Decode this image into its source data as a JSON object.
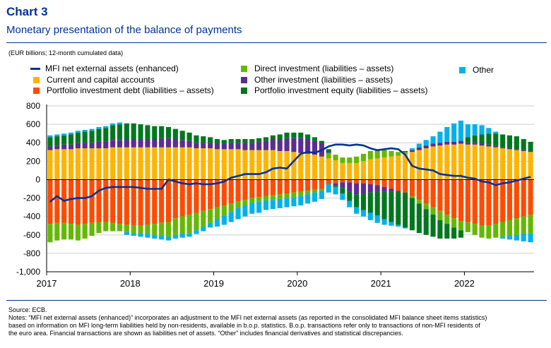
{
  "header": {
    "title": "Chart 3",
    "subtitle": "Monetary presentation of the balance of payments",
    "unit": "(EUR billions; 12-month cumulated data)"
  },
  "legend": {
    "mfi": "MFI net external assets (enhanced)",
    "ca": "Current and capital accounts",
    "pid": "Portfolio investment debt (liabilities – assets)",
    "di": "Direct investment (liabilities – assets)",
    "oi": "Other investment (liabilities – assets)",
    "pie": "Portfolio investment equity (liabilities – assets)",
    "other": "Other"
  },
  "footer": {
    "source": "Source: ECB.",
    "notes": [
      "Notes: “MFI net external assets (enhanced)” incorporates an adjustment to the MFI net external assets (as reported in the consolidated MFI balance sheet items statistics)",
      "based on information on MFI long-term liabilities held by non-residents, available in b.o.p. statistics. B.o.p. transactions refer only to transactions of non-MFI residents of",
      "the euro area. Financial transactions are shown as liabilities net of assets. “Other” includes financial derivatives and statistical discrepancies."
    ]
  },
  "chart_data": {
    "type": "bar",
    "stacked": true,
    "ylim": [
      -1000,
      800
    ],
    "yticks": [
      "800",
      "600",
      "400",
      "200",
      "0",
      "-200",
      "-400",
      "-600",
      "-800",
      "-1,000"
    ],
    "ytick_values": [
      800,
      600,
      400,
      200,
      0,
      -200,
      -400,
      -600,
      -800,
      -1000
    ],
    "xticks": [
      "2017",
      "2018",
      "2019",
      "2020",
      "2021",
      "2022"
    ],
    "grid": true,
    "legend_position": "top",
    "periods_per_year": 12,
    "colors": {
      "ca": "#FFB400",
      "pid": "#FF4B00",
      "di": "#65B800",
      "oi": "#5C2D91",
      "pie": "#00771F",
      "other": "#00B1EA",
      "mfi": "#003299"
    },
    "series": [
      {
        "key": "ca",
        "name": "Current and capital accounts",
        "values": [
          320,
          330,
          330,
          330,
          340,
          340,
          340,
          340,
          340,
          350,
          350,
          350,
          350,
          350,
          350,
          350,
          350,
          350,
          350,
          350,
          350,
          340,
          340,
          340,
          330,
          330,
          330,
          330,
          320,
          320,
          320,
          320,
          320,
          310,
          310,
          300,
          290,
          280,
          270,
          250,
          230,
          210,
          180,
          180,
          180,
          200,
          220,
          230,
          240,
          250,
          260,
          280,
          300,
          320,
          340,
          360,
          370,
          380,
          380,
          390,
          380,
          380,
          370,
          360,
          350,
          340,
          330,
          320,
          310,
          300
        ]
      },
      {
        "key": "pid",
        "name": "Portfolio investment debt (liabilities – assets)",
        "values": [
          -480,
          -470,
          -470,
          -480,
          -490,
          -480,
          -470,
          -460,
          -460,
          -470,
          -480,
          -490,
          -500,
          -500,
          -490,
          -480,
          -470,
          -460,
          -420,
          -400,
          -380,
          -360,
          -340,
          -320,
          -300,
          -280,
          -260,
          -240,
          -220,
          -200,
          -190,
          -180,
          -170,
          -160,
          -150,
          -140,
          -130,
          -120,
          -110,
          -100,
          -50,
          -40,
          -30,
          -30,
          -40,
          -40,
          -50,
          -60,
          -80,
          -100,
          -120,
          -140,
          -180,
          -220,
          -260,
          -300,
          -340,
          -380,
          -420,
          -450,
          -460,
          -480,
          -500,
          -500,
          -480,
          -460,
          -440,
          -420,
          -400,
          -380
        ]
      },
      {
        "key": "di",
        "name": "Direct investment (liabilities – assets)",
        "values": [
          -200,
          -190,
          -180,
          -170,
          -170,
          -160,
          -140,
          -120,
          -100,
          -90,
          -80,
          -80,
          -80,
          -90,
          -100,
          -120,
          -140,
          -160,
          -180,
          -190,
          -200,
          -190,
          -170,
          -150,
          -130,
          -110,
          -90,
          -70,
          -60,
          -50,
          -50,
          -50,
          -50,
          -50,
          -50,
          -50,
          -50,
          -40,
          -30,
          -20,
          60,
          60,
          60,
          60,
          70,
          80,
          90,
          100,
          80,
          60,
          40,
          20,
          -20,
          -40,
          -60,
          -80,
          -100,
          -100,
          -100,
          -100,
          -110,
          -120,
          -130,
          -140,
          -150,
          -160,
          -170,
          -180,
          -190,
          -200
        ]
      },
      {
        "key": "oi",
        "name": "Other investment (liabilities – assets)",
        "values": [
          40,
          40,
          50,
          50,
          60,
          60,
          60,
          70,
          70,
          80,
          80,
          90,
          90,
          90,
          90,
          90,
          100,
          100,
          90,
          80,
          70,
          60,
          60,
          60,
          60,
          60,
          70,
          70,
          80,
          80,
          90,
          100,
          120,
          130,
          140,
          150,
          160,
          160,
          150,
          140,
          20,
          -20,
          -60,
          -100,
          -120,
          -110,
          -90,
          -70,
          -50,
          -30,
          -10,
          10,
          20,
          30,
          30,
          30,
          30,
          30,
          30,
          30,
          20,
          20,
          20,
          20,
          20,
          10,
          10,
          10,
          10,
          10
        ]
      },
      {
        "key": "pie",
        "name": "Portfolio investment equity (liabilities – assets)",
        "values": [
          100,
          100,
          100,
          110,
          110,
          120,
          130,
          140,
          150,
          160,
          170,
          170,
          170,
          160,
          150,
          140,
          130,
          120,
          110,
          100,
          90,
          80,
          70,
          60,
          50,
          40,
          40,
          40,
          40,
          40,
          40,
          40,
          40,
          50,
          60,
          60,
          60,
          50,
          40,
          30,
          20,
          -20,
          -60,
          -100,
          -140,
          -180,
          -220,
          -260,
          -300,
          -330,
          -360,
          -380,
          -350,
          -320,
          -280,
          -240,
          -200,
          -160,
          -120,
          -80,
          60,
          80,
          100,
          120,
          130,
          140,
          140,
          140,
          120,
          100
        ]
      },
      {
        "key": "other",
        "name": "Other",
        "values": [
          20,
          20,
          20,
          20,
          20,
          20,
          20,
          20,
          20,
          20,
          20,
          -30,
          -30,
          -30,
          -40,
          -40,
          -40,
          -40,
          -40,
          -40,
          -40,
          -40,
          -50,
          -50,
          -80,
          -100,
          -110,
          -120,
          -120,
          -120,
          -120,
          -100,
          -100,
          -100,
          -100,
          -100,
          -100,
          -100,
          -100,
          -90,
          -90,
          -80,
          -70,
          -70,
          -70,
          -70,
          -80,
          -80,
          -60,
          -40,
          -20,
          -10,
          20,
          40,
          60,
          80,
          120,
          160,
          200,
          220,
          140,
          120,
          100,
          60,
          20,
          -20,
          -40,
          -60,
          -80,
          -100
        ]
      }
    ],
    "line": {
      "key": "mfi",
      "name": "MFI net external assets (enhanced)",
      "values": [
        -240,
        -180,
        -230,
        -210,
        -200,
        -200,
        -180,
        -120,
        -90,
        -80,
        -80,
        -80,
        -80,
        -90,
        -100,
        -100,
        -100,
        0,
        -20,
        -40,
        -50,
        -40,
        -50,
        -50,
        -40,
        -20,
        20,
        40,
        60,
        60,
        60,
        80,
        120,
        130,
        120,
        200,
        280,
        300,
        290,
        320,
        360,
        380,
        380,
        370,
        380,
        370,
        340,
        320,
        330,
        340,
        330,
        270,
        150,
        120,
        110,
        100,
        60,
        50,
        40,
        40,
        20,
        10,
        -20,
        -30,
        -60,
        -40,
        -30,
        -10,
        10,
        30
      ]
    }
  }
}
